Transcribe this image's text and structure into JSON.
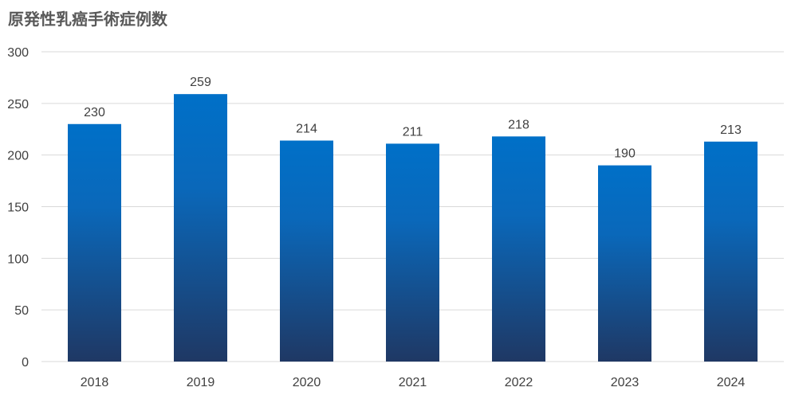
{
  "chart_data": {
    "type": "bar",
    "title": "原発性乳癌手術症例数",
    "xlabel": "",
    "ylabel": "",
    "categories": [
      "2018",
      "2019",
      "2020",
      "2021",
      "2022",
      "2023",
      "2024"
    ],
    "values": [
      230,
      259,
      214,
      211,
      218,
      190,
      213
    ],
    "ylim": [
      0,
      300
    ],
    "yticks": [
      0,
      50,
      100,
      150,
      200,
      250,
      300
    ],
    "grid": true,
    "legend": "none",
    "data_labels": true,
    "colors": {
      "bar_top": "#0070C8",
      "bar_bottom": "#1F3864",
      "grid": "#D9D9D9",
      "text": "#404040",
      "title": "#595959"
    }
  }
}
